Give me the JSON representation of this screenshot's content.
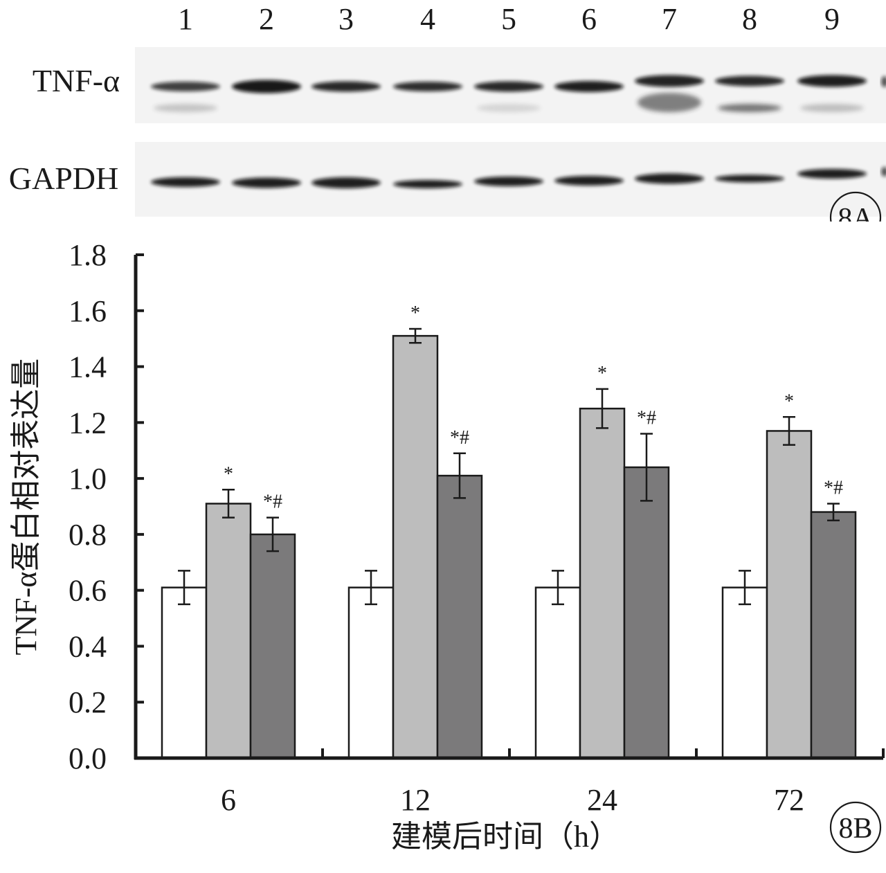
{
  "blot": {
    "lane_numbers": [
      "1",
      "2",
      "3",
      "4",
      "5",
      "6",
      "7",
      "8",
      "9"
    ],
    "rows": [
      {
        "label": "TNF-α"
      },
      {
        "label": "GAPDH"
      }
    ],
    "panel_label": "8A"
  },
  "chart_data": {
    "type": "bar",
    "panel_label": "8B",
    "categories": [
      "6",
      "12",
      "24",
      "72"
    ],
    "xlabel": "建模后时间（h）",
    "ylabel": "TNF-α蛋白相对表达量",
    "ylim": [
      0,
      1.8
    ],
    "yticks": [
      "0.0",
      "0.2",
      "0.4",
      "0.6",
      "0.8",
      "1.0",
      "1.2",
      "1.4",
      "1.6",
      "1.8"
    ],
    "legend": "none",
    "grid": false,
    "series": [
      {
        "color": "#ffffff",
        "values": [
          0.61,
          0.61,
          0.61,
          0.61
        ],
        "errors": [
          0.06,
          0.06,
          0.06,
          0.06
        ],
        "annotations": [
          "",
          "",
          "",
          ""
        ]
      },
      {
        "color": "#bdbdbd",
        "values": [
          0.91,
          1.51,
          1.25,
          1.17
        ],
        "errors": [
          0.05,
          0.025,
          0.07,
          0.05
        ],
        "annotations": [
          "*",
          "*",
          "*",
          "*"
        ]
      },
      {
        "color": "#7b7a7b",
        "values": [
          0.8,
          1.01,
          1.04,
          0.88
        ],
        "errors": [
          0.06,
          0.08,
          0.12,
          0.03
        ],
        "annotations": [
          "*#",
          "*#",
          "*#",
          "*#"
        ]
      }
    ]
  }
}
